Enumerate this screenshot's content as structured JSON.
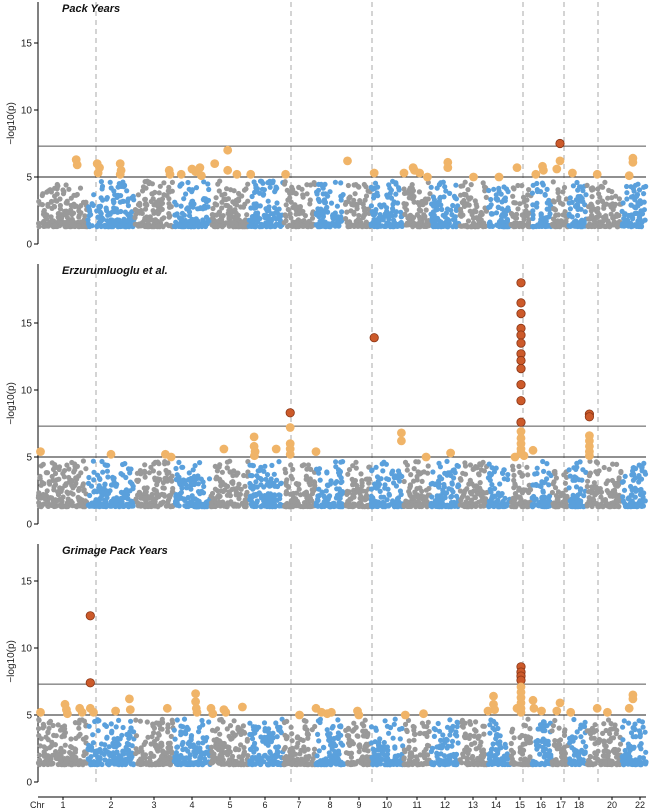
{
  "chart_data": {
    "type": "scatter",
    "x_axis_prefix": "Chr",
    "chromosomes": [
      "1",
      "2",
      "3",
      "4",
      "5",
      "6",
      "7",
      "8",
      "9",
      "10",
      "11",
      "12",
      "13",
      "14",
      "15",
      "16",
      "17",
      "18",
      "20",
      "22"
    ],
    "y_ticks": [
      0,
      5,
      10,
      15
    ],
    "ylabel": "−log10(p)",
    "thresholds": {
      "genome_wide": 7.3,
      "suggestive": 5
    },
    "colors": {
      "odd_chr": "#999999",
      "even_chr": "#5aa0dc",
      "suggestive": "#f0b468",
      "significant": "#cc5a2a",
      "threshold_line": "#555555",
      "chr_divider": "#aaaaaa"
    },
    "grid": false,
    "panels": [
      {
        "title": "Pack Years",
        "ylim": [
          0,
          18
        ],
        "hits": [
          {
            "chr": "1",
            "pos": 0.78,
            "p": 6.3
          },
          {
            "chr": "1",
            "pos": 0.8,
            "p": 5.9
          },
          {
            "chr": "2",
            "pos": 0.2,
            "p": 6.0
          },
          {
            "chr": "2",
            "pos": 0.25,
            "p": 5.7
          },
          {
            "chr": "2",
            "pos": 0.22,
            "p": 5.3
          },
          {
            "chr": "2",
            "pos": 0.7,
            "p": 6.0
          },
          {
            "chr": "2",
            "pos": 0.72,
            "p": 5.5
          },
          {
            "chr": "2",
            "pos": 0.7,
            "p": 5.2
          },
          {
            "chr": "3",
            "pos": 0.9,
            "p": 5.5
          },
          {
            "chr": "3",
            "pos": 0.92,
            "p": 5.2
          },
          {
            "chr": "4",
            "pos": 0.2,
            "p": 5.2
          },
          {
            "chr": "4",
            "pos": 0.5,
            "p": 5.6
          },
          {
            "chr": "4",
            "pos": 0.6,
            "p": 5.4
          },
          {
            "chr": "4",
            "pos": 0.72,
            "p": 5.7
          },
          {
            "chr": "4",
            "pos": 0.76,
            "p": 5.1
          },
          {
            "chr": "5",
            "pos": 0.1,
            "p": 6.0
          },
          {
            "chr": "5",
            "pos": 0.45,
            "p": 7.0
          },
          {
            "chr": "5",
            "pos": 0.45,
            "p": 5.5
          },
          {
            "chr": "5",
            "pos": 0.7,
            "p": 5.2
          },
          {
            "chr": "6",
            "pos": 0.05,
            "p": 5.2
          },
          {
            "chr": "7",
            "pos": 0.05,
            "p": 5.2
          },
          {
            "chr": "9",
            "pos": 0.1,
            "p": 6.2
          },
          {
            "chr": "10",
            "pos": 0.1,
            "p": 5.3
          },
          {
            "chr": "11",
            "pos": 0.0,
            "p": 5.3
          },
          {
            "chr": "11",
            "pos": 0.35,
            "p": 5.7
          },
          {
            "chr": "11",
            "pos": 0.4,
            "p": 5.5
          },
          {
            "chr": "11",
            "pos": 0.6,
            "p": 5.3
          },
          {
            "chr": "11",
            "pos": 0.9,
            "p": 5.0
          },
          {
            "chr": "12",
            "pos": 0.6,
            "p": 6.1
          },
          {
            "chr": "12",
            "pos": 0.6,
            "p": 5.7
          },
          {
            "chr": "13",
            "pos": 0.5,
            "p": 5.0
          },
          {
            "chr": "14",
            "pos": 0.5,
            "p": 5.0
          },
          {
            "chr": "15",
            "pos": 0.3,
            "p": 5.7
          },
          {
            "chr": "16",
            "pos": 0.2,
            "p": 5.2
          },
          {
            "chr": "16",
            "pos": 0.55,
            "p": 5.8
          },
          {
            "chr": "16",
            "pos": 0.6,
            "p": 5.5
          },
          {
            "chr": "17",
            "pos": 0.3,
            "p": 5.6
          },
          {
            "chr": "17",
            "pos": 0.5,
            "p": 6.2
          },
          {
            "chr": "17",
            "pos": 0.5,
            "p": 7.5
          },
          {
            "chr": "18",
            "pos": 0.2,
            "p": 5.3
          },
          {
            "chr": "20",
            "pos": 0.3,
            "p": 5.2
          },
          {
            "chr": "20",
            "pos": 1.35,
            "p": 6.4
          },
          {
            "chr": "20",
            "pos": 1.35,
            "p": 6.1
          },
          {
            "chr": "22",
            "pos": 0.3,
            "p": 5.1
          }
        ]
      },
      {
        "title": "Erzurumluoglu et al.",
        "ylim": [
          0,
          18
        ],
        "hits": [
          {
            "chr": "1",
            "pos": 0.05,
            "p": 5.4
          },
          {
            "chr": "2",
            "pos": 0.5,
            "p": 5.2
          },
          {
            "chr": "3",
            "pos": 0.8,
            "p": 5.2
          },
          {
            "chr": "3",
            "pos": 0.95,
            "p": 5.0
          },
          {
            "chr": "5",
            "pos": 0.35,
            "p": 5.6
          },
          {
            "chr": "6",
            "pos": 0.15,
            "p": 6.5
          },
          {
            "chr": "6",
            "pos": 0.15,
            "p": 5.8
          },
          {
            "chr": "6",
            "pos": 0.18,
            "p": 5.4
          },
          {
            "chr": "6",
            "pos": 0.16,
            "p": 5.1
          },
          {
            "chr": "6",
            "pos": 0.8,
            "p": 5.6
          },
          {
            "chr": "7",
            "pos": 0.2,
            "p": 8.3
          },
          {
            "chr": "7",
            "pos": 0.2,
            "p": 7.2
          },
          {
            "chr": "7",
            "pos": 0.2,
            "p": 6.0
          },
          {
            "chr": "7",
            "pos": 0.2,
            "p": 5.6
          },
          {
            "chr": "7",
            "pos": 0.2,
            "p": 5.2
          },
          {
            "chr": "8",
            "pos": 0.0,
            "p": 5.4
          },
          {
            "chr": "10",
            "pos": 0.1,
            "p": 13.9
          },
          {
            "chr": "10",
            "pos": 0.95,
            "p": 6.8
          },
          {
            "chr": "10",
            "pos": 0.95,
            "p": 6.2
          },
          {
            "chr": "11",
            "pos": 0.85,
            "p": 5.0
          },
          {
            "chr": "12",
            "pos": 0.7,
            "p": 5.3
          },
          {
            "chr": "15",
            "pos": 0.2,
            "p": 5.0
          },
          {
            "chr": "15",
            "pos": 0.5,
            "p": 18.0
          },
          {
            "chr": "15",
            "pos": 0.5,
            "p": 16.5
          },
          {
            "chr": "15",
            "pos": 0.5,
            "p": 15.7
          },
          {
            "chr": "15",
            "pos": 0.5,
            "p": 14.6
          },
          {
            "chr": "15",
            "pos": 0.5,
            "p": 14.1
          },
          {
            "chr": "15",
            "pos": 0.5,
            "p": 13.5
          },
          {
            "chr": "15",
            "pos": 0.5,
            "p": 12.7
          },
          {
            "chr": "15",
            "pos": 0.5,
            "p": 12.2
          },
          {
            "chr": "15",
            "pos": 0.5,
            "p": 11.6
          },
          {
            "chr": "15",
            "pos": 0.5,
            "p": 10.4
          },
          {
            "chr": "15",
            "pos": 0.5,
            "p": 9.2
          },
          {
            "chr": "15",
            "pos": 0.5,
            "p": 7.6
          },
          {
            "chr": "15",
            "pos": 0.5,
            "p": 6.9
          },
          {
            "chr": "15",
            "pos": 0.5,
            "p": 6.4
          },
          {
            "chr": "15",
            "pos": 0.5,
            "p": 6.0
          },
          {
            "chr": "15",
            "pos": 0.5,
            "p": 5.6
          },
          {
            "chr": "15",
            "pos": 0.5,
            "p": 5.3
          },
          {
            "chr": "15",
            "pos": 0.65,
            "p": 5.1
          },
          {
            "chr": "16",
            "pos": 0.05,
            "p": 5.5
          },
          {
            "chr": "18",
            "pos": 1.2,
            "p": 8.2
          },
          {
            "chr": "18",
            "pos": 1.2,
            "p": 8.0
          },
          {
            "chr": "18",
            "pos": 1.2,
            "p": 6.6
          },
          {
            "chr": "18",
            "pos": 1.2,
            "p": 6.2
          },
          {
            "chr": "18",
            "pos": 1.2,
            "p": 5.8
          },
          {
            "chr": "18",
            "pos": 1.2,
            "p": 5.4
          },
          {
            "chr": "18",
            "pos": 1.2,
            "p": 5.1
          }
        ]
      },
      {
        "title": "Grimage Pack Years",
        "ylim": [
          0,
          18
        ],
        "hits": [
          {
            "chr": "1",
            "pos": 0.05,
            "p": 5.2
          },
          {
            "chr": "1",
            "pos": 0.55,
            "p": 5.8
          },
          {
            "chr": "1",
            "pos": 0.58,
            "p": 5.4
          },
          {
            "chr": "1",
            "pos": 0.6,
            "p": 5.1
          },
          {
            "chr": "1",
            "pos": 0.85,
            "p": 5.5
          },
          {
            "chr": "1",
            "pos": 0.9,
            "p": 5.2
          },
          {
            "chr": "2",
            "pos": 0.05,
            "p": 12.4
          },
          {
            "chr": "2",
            "pos": 0.05,
            "p": 7.4
          },
          {
            "chr": "2",
            "pos": 0.05,
            "p": 5.5
          },
          {
            "chr": "2",
            "pos": 0.12,
            "p": 5.2
          },
          {
            "chr": "2",
            "pos": 0.6,
            "p": 5.3
          },
          {
            "chr": "2",
            "pos": 0.9,
            "p": 6.2
          },
          {
            "chr": "2",
            "pos": 0.92,
            "p": 5.4
          },
          {
            "chr": "3",
            "pos": 0.85,
            "p": 5.5
          },
          {
            "chr": "4",
            "pos": 0.6,
            "p": 6.6
          },
          {
            "chr": "4",
            "pos": 0.6,
            "p": 6.0
          },
          {
            "chr": "4",
            "pos": 0.62,
            "p": 5.5
          },
          {
            "chr": "4",
            "pos": 0.64,
            "p": 5.2
          },
          {
            "chr": "5",
            "pos": 0.0,
            "p": 5.5
          },
          {
            "chr": "5",
            "pos": 0.05,
            "p": 5.1
          },
          {
            "chr": "5",
            "pos": 0.35,
            "p": 5.4
          },
          {
            "chr": "5",
            "pos": 0.4,
            "p": 5.2
          },
          {
            "chr": "5",
            "pos": 0.85,
            "p": 5.6
          },
          {
            "chr": "7",
            "pos": 0.5,
            "p": 5.0
          },
          {
            "chr": "8",
            "pos": 0.0,
            "p": 5.5
          },
          {
            "chr": "8",
            "pos": 0.2,
            "p": 5.2
          },
          {
            "chr": "8",
            "pos": 0.4,
            "p": 5.1
          },
          {
            "chr": "8",
            "pos": 0.55,
            "p": 5.2
          },
          {
            "chr": "9",
            "pos": 0.5,
            "p": 5.3
          },
          {
            "chr": "9",
            "pos": 0.55,
            "p": 5.0
          },
          {
            "chr": "11",
            "pos": 0.05,
            "p": 5.0
          },
          {
            "chr": "11",
            "pos": 0.75,
            "p": 5.1
          },
          {
            "chr": "14",
            "pos": 0.0,
            "p": 5.3
          },
          {
            "chr": "14",
            "pos": 0.25,
            "p": 6.4
          },
          {
            "chr": "14",
            "pos": 0.25,
            "p": 5.8
          },
          {
            "chr": "14",
            "pos": 0.3,
            "p": 5.4
          },
          {
            "chr": "15",
            "pos": 0.3,
            "p": 5.5
          },
          {
            "chr": "15",
            "pos": 0.5,
            "p": 8.6
          },
          {
            "chr": "15",
            "pos": 0.5,
            "p": 8.2
          },
          {
            "chr": "15",
            "pos": 0.5,
            "p": 7.9
          },
          {
            "chr": "15",
            "pos": 0.5,
            "p": 7.6
          },
          {
            "chr": "15",
            "pos": 0.5,
            "p": 7.1
          },
          {
            "chr": "15",
            "pos": 0.5,
            "p": 6.7
          },
          {
            "chr": "15",
            "pos": 0.5,
            "p": 6.3
          },
          {
            "chr": "15",
            "pos": 0.5,
            "p": 5.9
          },
          {
            "chr": "15",
            "pos": 0.5,
            "p": 5.5
          },
          {
            "chr": "15",
            "pos": 0.5,
            "p": 5.2
          },
          {
            "chr": "16",
            "pos": 0.05,
            "p": 6.1
          },
          {
            "chr": "16",
            "pos": 0.1,
            "p": 5.5
          },
          {
            "chr": "16",
            "pos": 0.5,
            "p": 5.3
          },
          {
            "chr": "17",
            "pos": 0.3,
            "p": 5.3
          },
          {
            "chr": "17",
            "pos": 0.5,
            "p": 5.9
          },
          {
            "chr": "18",
            "pos": 0.1,
            "p": 5.2
          },
          {
            "chr": "20",
            "pos": 0.3,
            "p": 5.5
          },
          {
            "chr": "20",
            "pos": 0.6,
            "p": 5.2
          },
          {
            "chr": "20",
            "pos": 1.35,
            "p": 6.5
          },
          {
            "chr": "20",
            "pos": 1.35,
            "p": 6.2
          },
          {
            "chr": "22",
            "pos": 0.3,
            "p": 5.5
          }
        ]
      }
    ]
  }
}
